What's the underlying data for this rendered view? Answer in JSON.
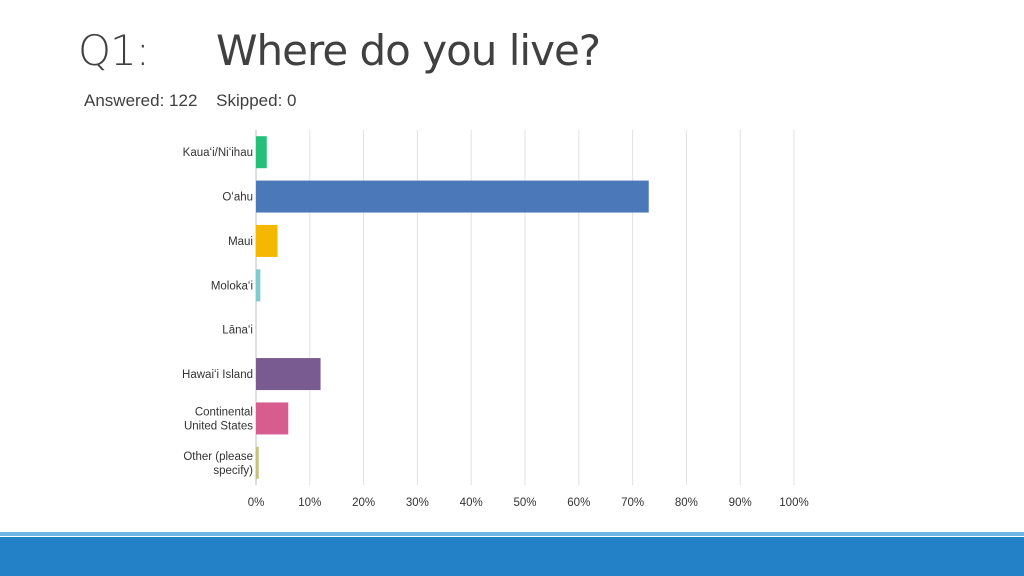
{
  "slide": {
    "question_number": "Q1:",
    "question_text": "Where do you live?",
    "answered": "Answered: 122",
    "skipped": "Skipped: 0"
  },
  "chart_data": {
    "type": "bar",
    "orientation": "horizontal",
    "title": "",
    "xlabel": "",
    "ylabel": "",
    "categories": [
      [
        "Kauaʻi/Niʻihau"
      ],
      [
        "Oʻahu"
      ],
      [
        "Maui"
      ],
      [
        "Molokaʻi"
      ],
      [
        "Lānaʻi"
      ],
      [
        "Hawaiʻi Island"
      ],
      [
        "Continental",
        "United States"
      ],
      [
        "Other (please",
        "specify)"
      ]
    ],
    "values": [
      2,
      73,
      4,
      0.8,
      0,
      12,
      6,
      0.5
    ],
    "colors": [
      "#26bf78",
      "#4a78b8",
      "#f5b800",
      "#7ccbd0",
      "#b0b0b0",
      "#7a5b91",
      "#d65d8e",
      "#c8c07a"
    ],
    "xlim": [
      0,
      100
    ],
    "x_ticks": [
      "0%",
      "10%",
      "20%",
      "30%",
      "40%",
      "50%",
      "60%",
      "70%",
      "80%",
      "90%",
      "100%"
    ],
    "grid": true,
    "legend": "none"
  }
}
